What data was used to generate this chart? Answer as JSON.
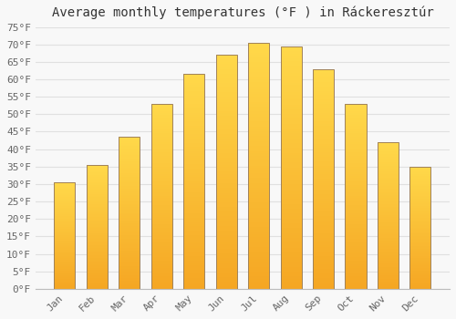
{
  "title": "Average monthly temperatures (°F ) in Ráckeresztúr",
  "months": [
    "Jan",
    "Feb",
    "Mar",
    "Apr",
    "May",
    "Jun",
    "Jul",
    "Aug",
    "Sep",
    "Oct",
    "Nov",
    "Dec"
  ],
  "values": [
    30.5,
    35.5,
    43.5,
    53.0,
    61.5,
    67.0,
    70.5,
    69.5,
    63.0,
    53.0,
    42.0,
    35.0
  ],
  "bar_color_bottom": "#F5A623",
  "bar_color_top": "#FFD94A",
  "bar_edge_color": "#A0825A",
  "background_color": "#F8F8F8",
  "plot_bg_color": "#F0F0F0",
  "grid_color": "#E0E0E0",
  "tick_label_color": "#666666",
  "title_color": "#333333",
  "ylim": [
    0,
    75
  ],
  "yticks": [
    0,
    5,
    10,
    15,
    20,
    25,
    30,
    35,
    40,
    45,
    50,
    55,
    60,
    65,
    70,
    75
  ],
  "title_fontsize": 10,
  "tick_fontsize": 8,
  "bar_width": 0.65
}
